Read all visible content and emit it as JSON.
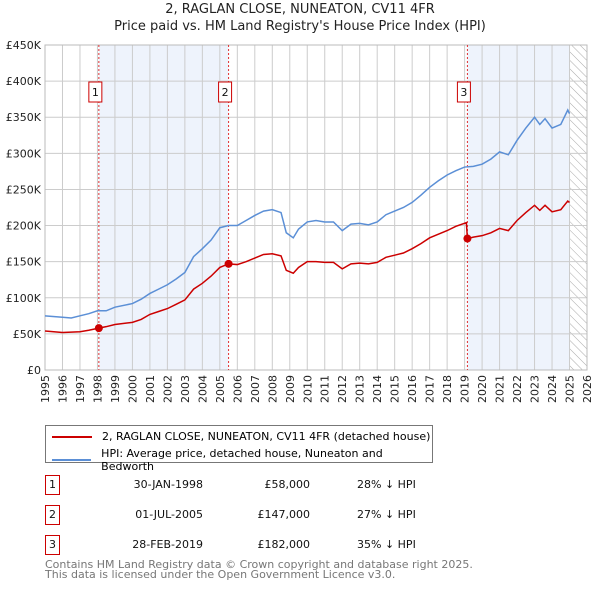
{
  "chart_data": {
    "type": "line",
    "title": "2, RAGLAN CLOSE, NUNEATON, CV11 4FR",
    "subtitle": "Price paid vs. HM Land Registry's House Price Index (HPI)",
    "xlim": [
      1995,
      2026
    ],
    "ylim": [
      0,
      450
    ],
    "xticks": [
      "1995",
      "1996",
      "1997",
      "1998",
      "1999",
      "2000",
      "2001",
      "2002",
      "2003",
      "2004",
      "2005",
      "2006",
      "2007",
      "2008",
      "2009",
      "2010",
      "2011",
      "2012",
      "2013",
      "2014",
      "2015",
      "2016",
      "2017",
      "2018",
      "2019",
      "2020",
      "2021",
      "2022",
      "2023",
      "2024",
      "2025",
      "2026"
    ],
    "yticks": [
      {
        "v": 0,
        "label": "£0"
      },
      {
        "v": 50,
        "label": "£50K"
      },
      {
        "v": 100,
        "label": "£100K"
      },
      {
        "v": 150,
        "label": "£150K"
      },
      {
        "v": 200,
        "label": "£200K"
      },
      {
        "v": 250,
        "label": "£250K"
      },
      {
        "v": 300,
        "label": "£300K"
      },
      {
        "v": 350,
        "label": "£350K"
      },
      {
        "v": 400,
        "label": "£400K"
      },
      {
        "v": 450,
        "label": "£450K"
      }
    ],
    "shaded": [
      [
        1998.08,
        2005.5
      ],
      [
        2019.16,
        2025.0
      ]
    ],
    "hatched_from": 2025.0,
    "series": [
      {
        "name": "2, RAGLAN CLOSE, NUNEATON, CV11 4FR (detached house)",
        "color": "#cc0000",
        "x": [
          1995,
          1996,
          1997,
          1997.5,
          1998.08,
          1998.5,
          1999,
          2000,
          2000.5,
          2001,
          2001.5,
          2002,
          2002.5,
          2003,
          2003.5,
          2004,
          2004.5,
          2005,
          2005.5,
          2006,
          2006.5,
          2007,
          2007.5,
          2008,
          2008.5,
          2008.8,
          2009.2,
          2009.5,
          2010,
          2010.5,
          2011,
          2011.5,
          2012,
          2012.5,
          2013,
          2013.5,
          2014,
          2014.5,
          2015,
          2015.5,
          2016,
          2016.5,
          2017,
          2017.5,
          2018,
          2018.5,
          2019.1,
          2019.16,
          2019.5,
          2020,
          2020.5,
          2021,
          2021.5,
          2022,
          2022.5,
          2023,
          2023.3,
          2023.6,
          2024,
          2024.5,
          2024.9,
          2025
        ],
        "y": [
          54,
          52,
          53,
          55,
          58,
          60,
          63,
          66,
          70,
          77,
          81,
          85,
          91,
          97,
          112,
          120,
          130,
          142,
          147,
          146,
          150,
          155,
          160,
          161,
          158,
          138,
          134,
          142,
          150,
          150,
          149,
          149,
          140,
          147,
          148,
          147,
          149,
          156,
          159,
          162,
          168,
          175,
          183,
          188,
          193,
          199,
          204,
          182,
          184,
          186,
          190,
          196,
          193,
          207,
          218,
          228,
          221,
          228,
          219,
          222,
          234,
          232
        ]
      },
      {
        "name": "HPI: Average price, detached house, Nuneaton and Bedworth",
        "color": "#5b8fd6",
        "x": [
          1995,
          1996,
          1996.5,
          1997,
          1997.5,
          1998,
          1998.5,
          1999,
          2000,
          2000.5,
          2001,
          2001.5,
          2002,
          2002.5,
          2003,
          2003.5,
          2004,
          2004.5,
          2005,
          2005.5,
          2006,
          2006.5,
          2007,
          2007.5,
          2008,
          2008.5,
          2008.8,
          2009.2,
          2009.5,
          2010,
          2010.5,
          2011,
          2011.5,
          2012,
          2012.5,
          2013,
          2013.5,
          2014,
          2014.5,
          2015,
          2015.5,
          2016,
          2016.5,
          2017,
          2017.5,
          2018,
          2018.5,
          2019,
          2019.5,
          2020,
          2020.5,
          2021,
          2021.5,
          2022,
          2022.5,
          2023,
          2023.3,
          2023.6,
          2024,
          2024.5,
          2024.9,
          2025
        ],
        "y": [
          75,
          73,
          72,
          75,
          78,
          82,
          82,
          87,
          92,
          98,
          106,
          112,
          118,
          126,
          135,
          157,
          168,
          180,
          197,
          200,
          200,
          207,
          214,
          220,
          222,
          218,
          190,
          183,
          195,
          205,
          207,
          205,
          205,
          193,
          202,
          203,
          201,
          205,
          215,
          220,
          225,
          232,
          242,
          253,
          262,
          270,
          276,
          281,
          282,
          285,
          292,
          302,
          298,
          318,
          335,
          350,
          340,
          348,
          335,
          340,
          360,
          355
        ]
      }
    ],
    "sales": [
      {
        "id": "1",
        "x": 1998.08,
        "y": 58,
        "date": "30-JAN-1998",
        "price": "£58,000",
        "hpi": "28% ↓ HPI"
      },
      {
        "id": "2",
        "x": 2005.5,
        "y": 147,
        "date": "01-JUL-2005",
        "price": "£147,000",
        "hpi": "27% ↓ HPI"
      },
      {
        "id": "3",
        "x": 2019.16,
        "y": 182,
        "date": "28-FEB-2019",
        "price": "£182,000",
        "hpi": "35% ↓ HPI"
      }
    ]
  },
  "footer": {
    "line1": "Contains HM Land Registry data © Crown copyright and database right 2025.",
    "line2": "This data is licensed under the Open Government Licence v3.0."
  }
}
